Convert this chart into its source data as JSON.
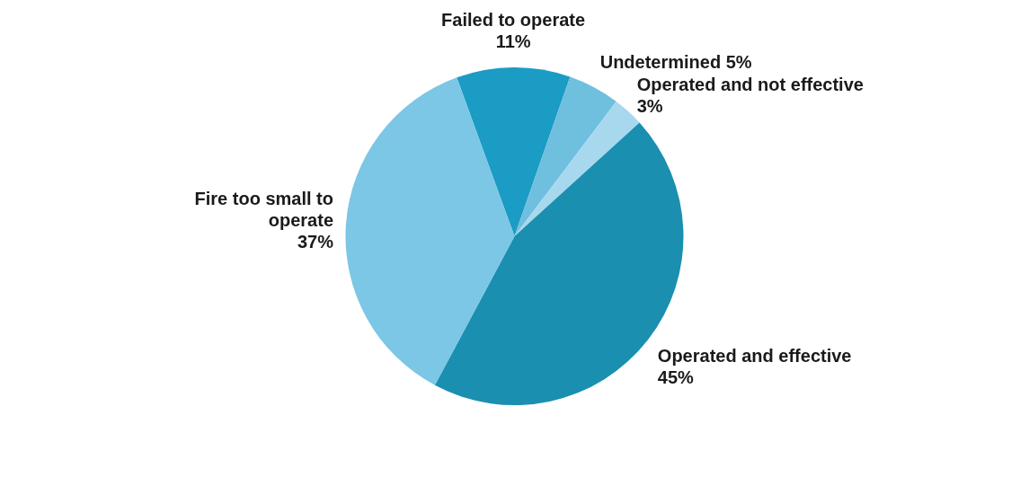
{
  "chart_data": {
    "type": "pie",
    "categories": [
      "Failed to operate",
      "Undetermined",
      "Operated and not effective",
      "Operated and effective",
      "Fire too small to operate"
    ],
    "values": [
      11,
      5,
      3,
      45,
      37
    ],
    "value_labels": [
      "11%",
      "5%",
      "3%",
      "45%",
      "37%"
    ],
    "colors": [
      "#1a9cc4",
      "#6fbfdf",
      "#a8d8ee",
      "#1a8fb0",
      "#7cc6e6"
    ],
    "legend": false
  }
}
